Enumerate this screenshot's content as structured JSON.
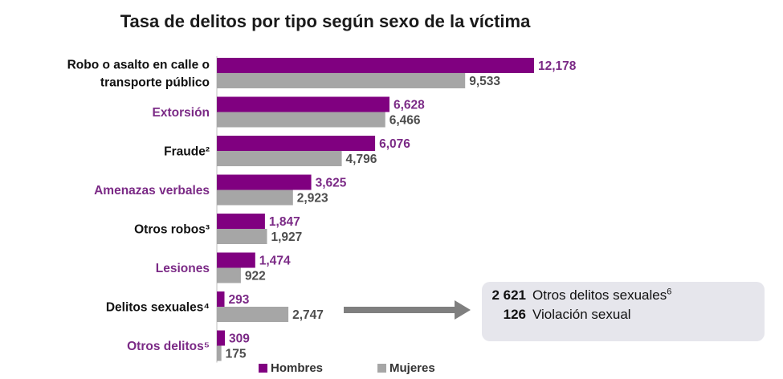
{
  "title": "Tasa de delitos por tipo según sexo de la víctima",
  "legend": {
    "hombres": "Hombres",
    "mujeres": "Mujeres"
  },
  "colors": {
    "hombres": "#800080",
    "mujeres": "#a6a6a6",
    "label_dark": "#111111",
    "label_purple": "#7b2a86",
    "value_grey": "#4d4d4d",
    "callout_bg": "#e6e6ec",
    "arrow": "#7f7f7f"
  },
  "chart_data": {
    "type": "bar",
    "orientation": "horizontal",
    "title": "Tasa de delitos por tipo según sexo de la víctima",
    "categories": [
      "Robo o asalto en calle o transporte público",
      "Extorsión",
      "Fraude²",
      "Amenazas verbales",
      "Otros robos³",
      "Lesiones",
      "Delitos sexuales⁴",
      "Otros delitos⁵"
    ],
    "category_label_lines": [
      [
        "Robo o asalto en calle o",
        "transporte público"
      ],
      [
        "Extorsión"
      ],
      [
        "Fraude²"
      ],
      [
        "Amenazas verbales"
      ],
      [
        "Otros robos³"
      ],
      [
        "Lesiones"
      ],
      [
        "Delitos sexuales⁴"
      ],
      [
        "Otros delitos⁵"
      ]
    ],
    "category_label_colors": [
      "dark",
      "purple",
      "dark",
      "purple",
      "dark",
      "purple",
      "dark",
      "purple"
    ],
    "series": [
      {
        "name": "Hombres",
        "values": [
          12178,
          6628,
          6076,
          3625,
          1847,
          1474,
          293,
          309
        ],
        "labels": [
          "12,178",
          "6,628",
          "6,076",
          "3,625",
          "1,847",
          "1,474",
          "293",
          "309"
        ]
      },
      {
        "name": "Mujeres",
        "values": [
          9533,
          6466,
          4796,
          2923,
          1927,
          922,
          2747,
          175
        ],
        "labels": [
          "9,533",
          "6,466",
          "4,796",
          "2,923",
          "1,927",
          "922",
          "2,747",
          "175"
        ]
      }
    ],
    "xlim": [
      0,
      12178
    ],
    "grid": false,
    "legend_position": "bottom"
  },
  "callout": {
    "rows": [
      {
        "value": "2 621",
        "label": "Otros delitos sexuales",
        "note": "6"
      },
      {
        "value": "126",
        "label": "Violación sexual",
        "note": ""
      }
    ]
  }
}
